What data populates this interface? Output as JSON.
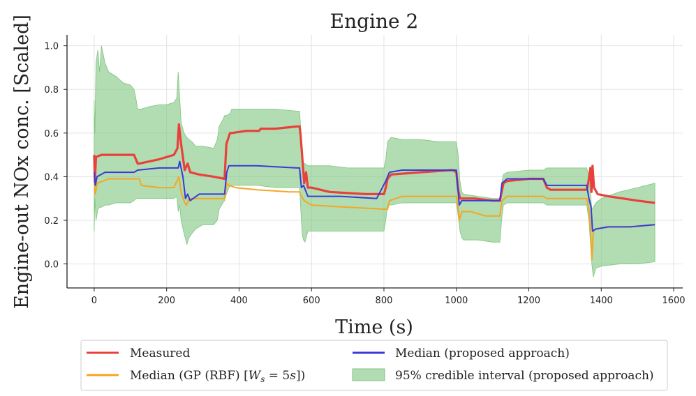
{
  "chart_data": {
    "type": "line",
    "title": "Engine 2",
    "xlabel": "Time (s)",
    "ylabel": "Engine-out NOx conc. [Scaled]",
    "xlim": [
      -75,
      1625
    ],
    "ylim": [
      -0.11,
      1.05
    ],
    "xticks": [
      0,
      200,
      400,
      600,
      800,
      1000,
      1200,
      1400,
      1600
    ],
    "yticks": [
      0.0,
      0.2,
      0.4,
      0.6,
      0.8,
      1.0
    ],
    "xtick_labels": [
      "0",
      "200",
      "400",
      "600",
      "800",
      "1000",
      "1200",
      "1400",
      "1600"
    ],
    "ytick_labels": [
      "0.0",
      "0.2",
      "0.4",
      "0.6",
      "0.8",
      "1.0"
    ],
    "grid": true,
    "legend": {
      "placement": "bottom-outside",
      "entries": [
        {
          "label": "Measured",
          "kind": "line",
          "color": "#e8413b"
        },
        {
          "label": "Median (proposed approach)",
          "kind": "line",
          "color": "#3a3ad6"
        },
        {
          "label": "Median (GP (RBF) [W_s = 5s])",
          "kind": "line",
          "color": "#f5a623"
        },
        {
          "label": "95% credible interval (proposed approach)",
          "kind": "band",
          "color": "#7fc47f"
        }
      ]
    },
    "series": [
      {
        "name": "Measured",
        "color": "#e8413b",
        "x": [
          0,
          2,
          5,
          20,
          60,
          110,
          120,
          125,
          180,
          220,
          230,
          234,
          240,
          250,
          258,
          265,
          290,
          330,
          360,
          365,
          375,
          380,
          420,
          455,
          460,
          500,
          560,
          567,
          570,
          580,
          585,
          590,
          600,
          650,
          700,
          750,
          800,
          805,
          810,
          820,
          900,
          990,
          1000,
          1005,
          1010,
          1020,
          1050,
          1100,
          1120,
          1130,
          1140,
          1200,
          1240,
          1250,
          1260,
          1300,
          1360,
          1365,
          1370,
          1373,
          1376,
          1380,
          1390,
          1420,
          1460,
          1500,
          1548
        ],
        "y": [
          0.5,
          0.38,
          0.49,
          0.5,
          0.5,
          0.5,
          0.46,
          0.46,
          0.48,
          0.5,
          0.53,
          0.64,
          0.55,
          0.43,
          0.46,
          0.42,
          0.41,
          0.4,
          0.39,
          0.55,
          0.6,
          0.6,
          0.61,
          0.61,
          0.62,
          0.62,
          0.63,
          0.63,
          0.59,
          0.37,
          0.42,
          0.35,
          0.35,
          0.33,
          0.325,
          0.32,
          0.32,
          0.35,
          0.39,
          0.41,
          0.42,
          0.43,
          0.42,
          0.34,
          0.3,
          0.3,
          0.3,
          0.29,
          0.29,
          0.37,
          0.38,
          0.39,
          0.39,
          0.35,
          0.34,
          0.34,
          0.34,
          0.38,
          0.44,
          0.33,
          0.45,
          0.35,
          0.32,
          0.31,
          0.3,
          0.29,
          0.28
        ]
      },
      {
        "name": "Median (proposed approach)",
        "color": "#3a3ad6",
        "x": [
          0,
          3,
          8,
          30,
          110,
          120,
          180,
          220,
          232,
          236,
          245,
          252,
          258,
          265,
          290,
          330,
          360,
          366,
          372,
          390,
          450,
          560,
          567,
          572,
          578,
          590,
          600,
          680,
          780,
          805,
          815,
          850,
          950,
          1000,
          1004,
          1008,
          1015,
          1030,
          1060,
          1100,
          1120,
          1126,
          1140,
          1200,
          1240,
          1250,
          1260,
          1300,
          1360,
          1366,
          1372,
          1376,
          1385,
          1420,
          1480,
          1548
        ],
        "y": [
          0.42,
          0.36,
          0.4,
          0.42,
          0.42,
          0.43,
          0.44,
          0.44,
          0.44,
          0.47,
          0.4,
          0.3,
          0.32,
          0.29,
          0.32,
          0.32,
          0.32,
          0.42,
          0.45,
          0.45,
          0.45,
          0.44,
          0.44,
          0.35,
          0.36,
          0.31,
          0.31,
          0.31,
          0.3,
          0.38,
          0.42,
          0.43,
          0.43,
          0.43,
          0.35,
          0.27,
          0.29,
          0.29,
          0.29,
          0.29,
          0.29,
          0.37,
          0.39,
          0.39,
          0.39,
          0.36,
          0.36,
          0.36,
          0.36,
          0.3,
          0.26,
          0.15,
          0.16,
          0.17,
          0.17,
          0.18
        ]
      },
      {
        "name": "Median (GP (RBF) [W_s = 5s])",
        "color": "#f5a623",
        "x": [
          0,
          3,
          8,
          40,
          110,
          125,
          130,
          180,
          220,
          234,
          240,
          250,
          255,
          262,
          270,
          300,
          360,
          366,
          372,
          390,
          450,
          540,
          567,
          572,
          580,
          600,
          700,
          810,
          815,
          850,
          950,
          1000,
          1004,
          1008,
          1015,
          1040,
          1080,
          1110,
          1120,
          1126,
          1140,
          1200,
          1240,
          1250,
          1260,
          1300,
          1360,
          1366,
          1370,
          1374,
          1378,
          1385,
          1420,
          1480,
          1548
        ],
        "y": [
          0.38,
          0.32,
          0.37,
          0.39,
          0.39,
          0.39,
          0.36,
          0.35,
          0.35,
          0.4,
          0.33,
          0.28,
          0.27,
          0.3,
          0.3,
          0.3,
          0.3,
          0.37,
          0.36,
          0.35,
          0.34,
          0.33,
          0.33,
          0.31,
          0.29,
          0.27,
          0.26,
          0.25,
          0.29,
          0.31,
          0.31,
          0.31,
          0.27,
          0.2,
          0.24,
          0.24,
          0.22,
          0.22,
          0.22,
          0.29,
          0.31,
          0.31,
          0.31,
          0.3,
          0.3,
          0.3,
          0.3,
          0.25,
          0.16,
          0.02,
          0.15,
          0.16,
          0.17,
          0.17,
          0.18
        ]
      },
      {
        "name": "95% credible interval (proposed approach)",
        "color": "#7fc47f",
        "x": [
          0,
          2,
          5,
          10,
          15,
          20,
          30,
          40,
          60,
          80,
          100,
          110,
          115,
          120,
          130,
          150,
          180,
          200,
          220,
          228,
          232,
          236,
          240,
          248,
          256,
          262,
          270,
          280,
          300,
          330,
          340,
          345,
          355,
          360,
          365,
          375,
          380,
          400,
          450,
          500,
          560,
          567,
          572,
          575,
          578,
          582,
          590,
          600,
          650,
          700,
          750,
          800,
          805,
          810,
          820,
          850,
          900,
          950,
          1000,
          1005,
          1010,
          1015,
          1020,
          1060,
          1100,
          1120,
          1126,
          1130,
          1140,
          1200,
          1240,
          1250,
          1260,
          1300,
          1360,
          1366,
          1370,
          1374,
          1378,
          1385,
          1400,
          1450,
          1500,
          1548
        ],
        "upper": [
          0.75,
          0.6,
          0.92,
          0.98,
          0.88,
          1.0,
          0.92,
          0.88,
          0.86,
          0.83,
          0.82,
          0.8,
          0.76,
          0.71,
          0.71,
          0.72,
          0.73,
          0.73,
          0.74,
          0.76,
          0.88,
          0.76,
          0.65,
          0.6,
          0.58,
          0.57,
          0.56,
          0.54,
          0.54,
          0.53,
          0.57,
          0.63,
          0.66,
          0.68,
          0.68,
          0.69,
          0.71,
          0.71,
          0.71,
          0.71,
          0.7,
          0.7,
          0.58,
          0.5,
          0.46,
          0.46,
          0.45,
          0.45,
          0.45,
          0.44,
          0.44,
          0.44,
          0.48,
          0.56,
          0.58,
          0.57,
          0.57,
          0.56,
          0.56,
          0.5,
          0.38,
          0.33,
          0.32,
          0.31,
          0.3,
          0.3,
          0.38,
          0.41,
          0.42,
          0.43,
          0.43,
          0.44,
          0.44,
          0.44,
          0.44,
          0.4,
          0.33,
          0.25,
          0.26,
          0.28,
          0.3,
          0.33,
          0.35,
          0.37
        ],
        "lower": [
          0.15,
          0.3,
          0.2,
          0.25,
          0.26,
          0.26,
          0.27,
          0.27,
          0.28,
          0.28,
          0.28,
          0.29,
          0.3,
          0.3,
          0.3,
          0.3,
          0.3,
          0.3,
          0.3,
          0.31,
          0.24,
          0.27,
          0.2,
          0.14,
          0.09,
          0.12,
          0.14,
          0.16,
          0.18,
          0.18,
          0.2,
          0.25,
          0.28,
          0.29,
          0.32,
          0.36,
          0.36,
          0.36,
          0.36,
          0.35,
          0.35,
          0.35,
          0.2,
          0.13,
          0.11,
          0.1,
          0.15,
          0.15,
          0.15,
          0.15,
          0.15,
          0.15,
          0.2,
          0.27,
          0.27,
          0.28,
          0.28,
          0.28,
          0.28,
          0.22,
          0.15,
          0.12,
          0.11,
          0.11,
          0.1,
          0.1,
          0.22,
          0.27,
          0.28,
          0.28,
          0.28,
          0.27,
          0.27,
          0.27,
          0.27,
          0.2,
          0.1,
          0.0,
          -0.06,
          -0.02,
          -0.01,
          0.0,
          0.0,
          0.01
        ]
      }
    ]
  }
}
